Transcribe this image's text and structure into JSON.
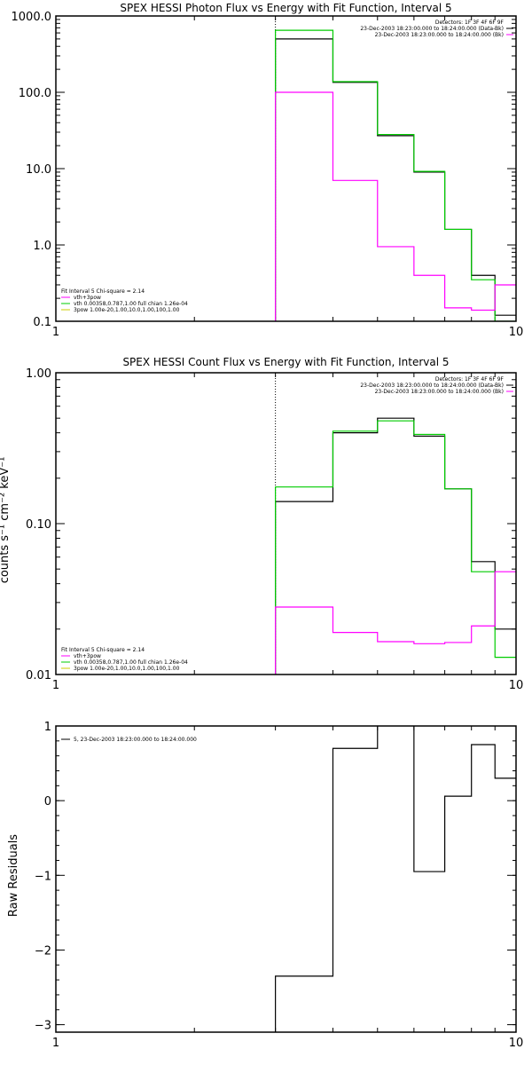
{
  "chart_data": [
    {
      "type": "line",
      "step": true,
      "title": "SPEX HESSI Photon Flux vs Energy with Fit Function, Interval 5",
      "xscale": "log",
      "yscale": "log",
      "xlim": [
        1,
        10
      ],
      "ylim": [
        0.1,
        1000
      ],
      "x_ticks": [
        "1",
        "10"
      ],
      "y_ticks": [
        "0.1",
        "1.0",
        "10.0",
        "100.0",
        "1000.0"
      ],
      "ylabel": "",
      "x_edges": [
        3,
        4,
        5,
        6,
        7,
        8,
        9,
        10
      ],
      "vline_x": 3,
      "series": [
        {
          "name": "Data",
          "color": "#000000",
          "values": [
            500,
            135,
            27,
            9,
            1.6,
            0.4,
            0.12
          ]
        },
        {
          "name": "vth+3pow",
          "color": "#00cc00",
          "values": [
            650,
            138,
            28,
            9.2,
            1.6,
            0.35,
            0.1
          ]
        },
        {
          "name": "bk",
          "color": "#ff00ff",
          "values": [
            100,
            7,
            0.95,
            0.4,
            0.15,
            0.14,
            0.3
          ]
        }
      ],
      "legend_right": [
        {
          "text": "Detectors: 1F 3F 4F 6F 9F",
          "color": ""
        },
        {
          "text": "23-Dec-2003 18:23:00.000 to 18:24:00.000 (Data-Bk)",
          "color": "#000000"
        },
        {
          "text": "23-Dec-2003 18:23:00.000 to 18:24:00.000 (Bk)",
          "color": "#ff00ff"
        }
      ],
      "legend_left": [
        {
          "text": "Fit Interval 5   Chi-square = 2.14",
          "color": ""
        },
        {
          "text": "vth+3pow",
          "color": "#ff00ff"
        },
        {
          "text": "vth 0.00358,0.787,1.00  full chian 1.26e-04",
          "color": "#00cc00"
        },
        {
          "text": "3pow 1.00e-20,1.00,10.0,1.00,100,1.00",
          "color": "#cccc00"
        }
      ]
    },
    {
      "type": "line",
      "step": true,
      "title": "SPEX HESSI Count Flux vs Energy with Fit Function, Interval 5",
      "xscale": "log",
      "yscale": "log",
      "xlim": [
        1,
        10
      ],
      "ylim": [
        0.01,
        1
      ],
      "x_ticks": [
        "1",
        "10"
      ],
      "y_ticks": [
        "0.01",
        "0.10",
        "1.00"
      ],
      "ylabel": "counts s⁻¹ cm⁻² keV⁻¹",
      "x_edges": [
        3,
        4,
        5,
        6,
        7,
        8,
        9,
        10
      ],
      "vline_x": 3,
      "series": [
        {
          "name": "Data",
          "color": "#000000",
          "values": [
            0.14,
            0.4,
            0.5,
            0.38,
            0.17,
            0.056,
            0.02
          ]
        },
        {
          "name": "vth+3pow",
          "color": "#00cc00",
          "values": [
            0.175,
            0.41,
            0.48,
            0.39,
            0.17,
            0.048,
            0.013
          ]
        },
        {
          "name": "bk",
          "color": "#ff00ff",
          "values": [
            0.028,
            0.019,
            0.0165,
            0.016,
            0.0163,
            0.021,
            0.048
          ]
        }
      ],
      "legend_right": [
        {
          "text": "Detectors: 1F 3F 4F 6F 9F",
          "color": ""
        },
        {
          "text": "23-Dec-2003 18:23:00.000 to 18:24:00.000 (Data-Bk)",
          "color": "#000000"
        },
        {
          "text": "23-Dec-2003 18:23:00.000 to 18:24:00.000 (Bk)",
          "color": "#ff00ff"
        }
      ],
      "legend_left": [
        {
          "text": "Fit Interval 5   Chi-square = 2.14",
          "color": ""
        },
        {
          "text": "vth+3pow",
          "color": "#ff00ff"
        },
        {
          "text": "vth 0.00358,0.787,1.00  full chian 1.26e-04",
          "color": "#00cc00"
        },
        {
          "text": "3pow 1.00e-20,1.00,10.0,1.00,100,1.00",
          "color": "#cccc00"
        }
      ]
    },
    {
      "type": "line",
      "step": true,
      "title": "",
      "xscale": "log",
      "yscale": "linear",
      "xlim": [
        1,
        10
      ],
      "ylim": [
        -3.1,
        1
      ],
      "x_ticks": [
        "1",
        "10"
      ],
      "y_ticks": [
        "-3",
        "-2",
        "-1",
        "0",
        "1"
      ],
      "ylabel": "Raw Residuals",
      "x_edges": [
        3,
        4,
        5,
        6,
        7,
        8,
        9,
        10
      ],
      "series": [
        {
          "name": "5, 23-Dec-2003 18:23:00.000 to 18:24:00.000",
          "color": "#000000",
          "values": [
            -2.35,
            0.7,
            1.05,
            -0.95,
            0.06,
            0.75,
            0.3
          ]
        }
      ],
      "legend_left": [
        {
          "text": "5, 23-Dec-2003 18:23:00.000 to 18:24:00.000",
          "color": "#000000"
        }
      ]
    }
  ]
}
